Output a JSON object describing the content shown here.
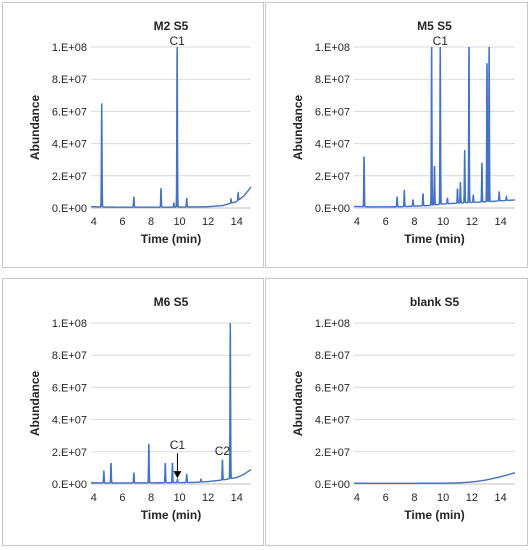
{
  "chart_data": [
    {
      "type": "line",
      "title": "M2 S5",
      "xlabel": "Time (min)",
      "ylabel": "Abundance",
      "xlim": [
        3.8,
        15
      ],
      "ylim": [
        0,
        100000000
      ],
      "xticks": [
        "4",
        "6",
        "8",
        "10",
        "12",
        "14"
      ],
      "yticks": [
        "0.E+00",
        "2.E+07",
        "4.E+07",
        "6.E+07",
        "8.E+07",
        "1.E+08"
      ],
      "grid": "horizontal",
      "color": "#4472c4",
      "baseline": [
        [
          3.8,
          900000
        ],
        [
          4.5,
          600000
        ],
        [
          6,
          500000
        ],
        [
          8,
          500000
        ],
        [
          10,
          550000
        ],
        [
          12,
          800000
        ],
        [
          13,
          1500000
        ],
        [
          14,
          4000000
        ],
        [
          14.5,
          7500000
        ],
        [
          15,
          13000000
        ]
      ],
      "peaks": [
        [
          4.55,
          65000000
        ],
        [
          6.8,
          7000000
        ],
        [
          8.7,
          12000000
        ],
        [
          9.6,
          3000000
        ],
        [
          9.83,
          100000000
        ],
        [
          10.5,
          6000000
        ],
        [
          13.6,
          5500000
        ],
        [
          14.1,
          9500000
        ]
      ],
      "annotations": [
        {
          "text": "C1",
          "x": 9.83,
          "y": 100000000
        }
      ]
    },
    {
      "type": "line",
      "title": "M5 S5",
      "xlabel": "Time (min)",
      "ylabel": "Abundance",
      "xlim": [
        3.8,
        15
      ],
      "ylim": [
        0,
        100000000
      ],
      "xticks": [
        "4",
        "6",
        "8",
        "10",
        "12",
        "14"
      ],
      "yticks": [
        "0.E+00",
        "2.E+07",
        "4.E+07",
        "6.E+07",
        "8.E+07",
        "1.E+08"
      ],
      "grid": "horizontal",
      "color": "#4472c4",
      "baseline": [
        [
          3.8,
          1000000
        ],
        [
          5,
          700000
        ],
        [
          7,
          800000
        ],
        [
          9,
          1500000
        ],
        [
          10,
          2500000
        ],
        [
          11,
          3000000
        ],
        [
          12,
          3500000
        ],
        [
          13,
          3800000
        ],
        [
          14,
          4500000
        ],
        [
          15,
          5000000
        ]
      ],
      "peaks": [
        [
          4.5,
          32000000
        ],
        [
          6.8,
          7000000
        ],
        [
          7.3,
          11000000
        ],
        [
          7.9,
          5000000
        ],
        [
          8.6,
          9000000
        ],
        [
          9.2,
          100000000
        ],
        [
          9.4,
          26000000
        ],
        [
          9.8,
          100000000
        ],
        [
          10.3,
          6000000
        ],
        [
          11.0,
          12000000
        ],
        [
          11.2,
          16000000
        ],
        [
          11.5,
          36000000
        ],
        [
          11.8,
          100000000
        ],
        [
          12.1,
          8000000
        ],
        [
          12.7,
          28000000
        ],
        [
          13.05,
          90000000
        ],
        [
          13.2,
          100000000
        ],
        [
          13.9,
          10000000
        ],
        [
          14.4,
          7000000
        ]
      ],
      "annotations": [
        {
          "text": "C1",
          "x": 9.8,
          "y": 100000000
        }
      ]
    },
    {
      "type": "line",
      "title": "M6 S5",
      "xlabel": "Time (min)",
      "ylabel": "Abundance",
      "xlim": [
        3.8,
        15
      ],
      "ylim": [
        0,
        100000000
      ],
      "xticks": [
        "4",
        "6",
        "8",
        "10",
        "12",
        "14"
      ],
      "yticks": [
        "0.E+00",
        "2.E+07",
        "4.E+07",
        "6.E+07",
        "8.E+07",
        "1.E+08"
      ],
      "grid": "horizontal",
      "color": "#4472c4",
      "baseline": [
        [
          3.8,
          800000
        ],
        [
          5,
          600000
        ],
        [
          7,
          700000
        ],
        [
          9,
          800000
        ],
        [
          11,
          1000000
        ],
        [
          12,
          1500000
        ],
        [
          13,
          2500000
        ],
        [
          14,
          4000000
        ],
        [
          14.5,
          6000000
        ],
        [
          15,
          9000000
        ]
      ],
      "peaks": [
        [
          4.7,
          8000000
        ],
        [
          5.2,
          13000000
        ],
        [
          6.8,
          7000000
        ],
        [
          7.85,
          25000000
        ],
        [
          9.0,
          13000000
        ],
        [
          9.5,
          13000000
        ],
        [
          9.85,
          3000000
        ],
        [
          10.5,
          6000000
        ],
        [
          11.5,
          3000000
        ],
        [
          13.0,
          15000000
        ],
        [
          13.55,
          100000000
        ]
      ],
      "annotations": [
        {
          "text": "C1",
          "x": 9.85,
          "y": 3000000,
          "arrow": true
        },
        {
          "text": "C2",
          "x": 13.0,
          "y": 15000000
        }
      ]
    },
    {
      "type": "line",
      "title": "blank S5",
      "xlabel": "Time (min)",
      "ylabel": "Abundance",
      "xlim": [
        3.8,
        15
      ],
      "ylim": [
        0,
        100000000
      ],
      "xticks": [
        "4",
        "6",
        "8",
        "10",
        "12",
        "14"
      ],
      "yticks": [
        "0.E+00",
        "2.E+07",
        "4.E+07",
        "6.E+07",
        "8.E+07",
        "1.E+08"
      ],
      "grid": "horizontal",
      "color": "#4472c4",
      "baseline": [
        [
          3.8,
          500000
        ],
        [
          6,
          400000
        ],
        [
          8,
          450000
        ],
        [
          10,
          500000
        ],
        [
          11,
          700000
        ],
        [
          12,
          1200000
        ],
        [
          13,
          2500000
        ],
        [
          14,
          4500000
        ],
        [
          15,
          7000000
        ]
      ],
      "peaks": [
        [
          12.0,
          1500000
        ]
      ],
      "annotations": []
    }
  ]
}
